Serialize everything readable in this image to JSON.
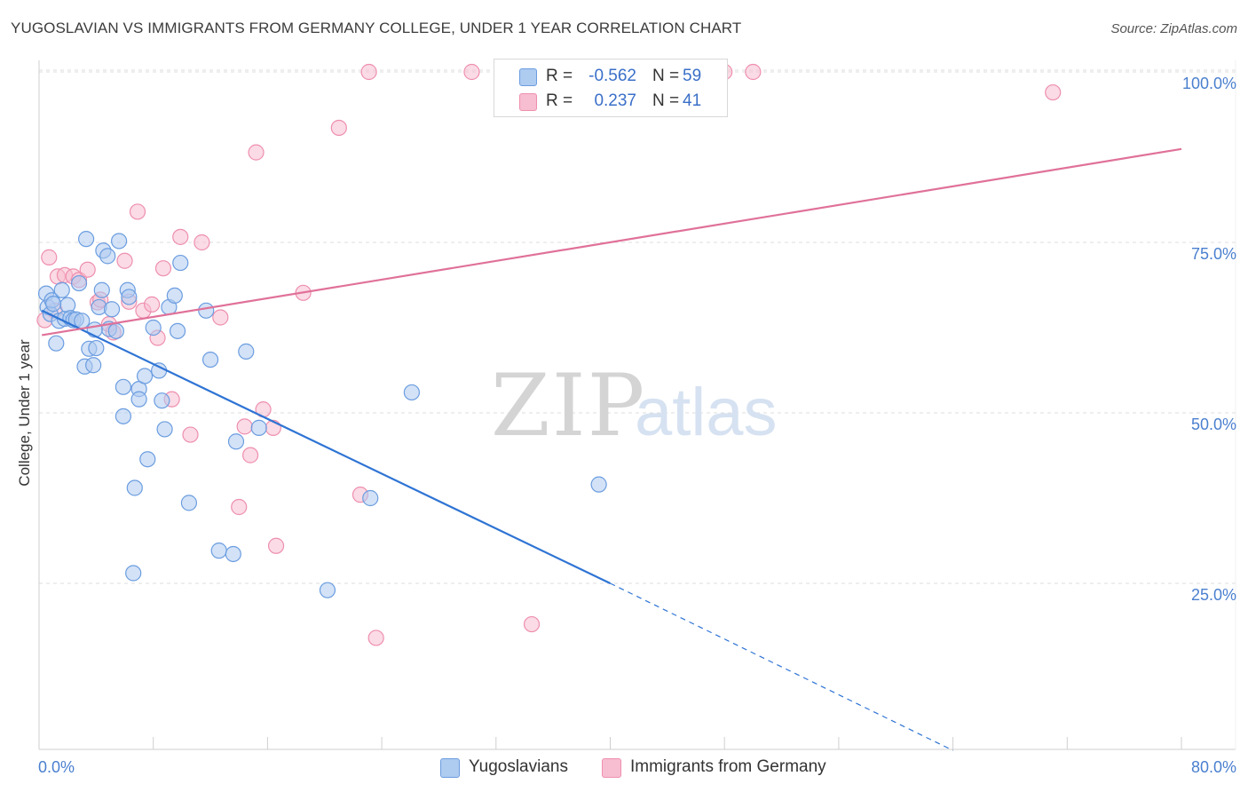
{
  "title": "YUGOSLAVIAN VS IMMIGRANTS FROM GERMANY COLLEGE, UNDER 1 YEAR CORRELATION CHART",
  "source": "Source: ZipAtlas.com",
  "watermark": {
    "zip": "ZIP",
    "atlas": "atlas"
  },
  "legend": {
    "rows": [
      {
        "r_label": "R =",
        "r_value": "-0.562",
        "n_label": "N =",
        "n_value": "59"
      },
      {
        "r_label": "R =",
        "r_value": "0.237",
        "n_label": "N =",
        "n_value": "41"
      }
    ]
  },
  "bottom_legend": [
    "Yugoslavians",
    "Immigrants from Germany"
  ],
  "colors": {
    "blue_fill": "#aecbf0",
    "blue_stroke": "#6b9de0",
    "blue_line": "#2f74d4",
    "pink_fill": "#f7bdd0",
    "pink_stroke": "#ee8fae",
    "pink_line": "#e07199",
    "grid": "#dcdcdc",
    "axis_text": "#4a7fcf"
  },
  "chart_data": {
    "type": "scatter",
    "title": "YUGOSLAVIAN VS IMMIGRANTS FROM GERMANY COLLEGE, UNDER 1 YEAR CORRELATION CHART",
    "xlabel": "",
    "ylabel": "College, Under 1 year",
    "xlim": [
      0,
      80
    ],
    "ylim": [
      0,
      105
    ],
    "x_tick_labels": [
      "0.0%",
      "80.0%"
    ],
    "y_ticks": [
      25,
      50,
      75,
      100
    ],
    "y_tick_labels": [
      "25.0%",
      "50.0%",
      "75.0%",
      "100.0%"
    ],
    "legend_position": "top-center",
    "series": [
      {
        "name": "Yugoslavians",
        "r": -0.562,
        "n": 59,
        "trend": {
          "x0": 0.2,
          "y0": 65.0,
          "x1": 40.0,
          "y1": 25.0,
          "dash_x1": 64.0,
          "dash_y1": 0.5
        },
        "points": [
          [
            0.5,
            67.5
          ],
          [
            0.6,
            65.5
          ],
          [
            0.8,
            64.5
          ],
          [
            0.9,
            66.5
          ],
          [
            1.2,
            60.2
          ],
          [
            1.4,
            63.5
          ],
          [
            1.6,
            68.0
          ],
          [
            1.8,
            63.8
          ],
          [
            2.0,
            65.8
          ],
          [
            2.2,
            63.9
          ],
          [
            2.4,
            63.6
          ],
          [
            2.6,
            63.7
          ],
          [
            2.8,
            69.0
          ],
          [
            3.0,
            63.5
          ],
          [
            3.2,
            56.8
          ],
          [
            3.3,
            75.5
          ],
          [
            3.5,
            59.4
          ],
          [
            3.8,
            57.0
          ],
          [
            4.0,
            59.5
          ],
          [
            4.2,
            65.5
          ],
          [
            4.4,
            68.0
          ],
          [
            4.5,
            73.8
          ],
          [
            4.8,
            73.0
          ],
          [
            4.9,
            62.3
          ],
          [
            5.1,
            65.2
          ],
          [
            5.4,
            62.0
          ],
          [
            5.6,
            75.2
          ],
          [
            5.9,
            49.5
          ],
          [
            5.9,
            53.8
          ],
          [
            6.2,
            68.0
          ],
          [
            6.3,
            67.0
          ],
          [
            6.6,
            26.5
          ],
          [
            6.7,
            39.0
          ],
          [
            7.0,
            53.5
          ],
          [
            7.0,
            52.0
          ],
          [
            7.4,
            55.4
          ],
          [
            7.6,
            43.2
          ],
          [
            8.0,
            62.5
          ],
          [
            8.4,
            56.2
          ],
          [
            8.6,
            51.8
          ],
          [
            8.8,
            47.6
          ],
          [
            9.1,
            65.5
          ],
          [
            9.5,
            67.2
          ],
          [
            9.7,
            62.0
          ],
          [
            9.9,
            72.0
          ],
          [
            10.5,
            36.8
          ],
          [
            11.7,
            65.0
          ],
          [
            12.0,
            57.8
          ],
          [
            12.6,
            29.8
          ],
          [
            13.6,
            29.3
          ],
          [
            13.8,
            45.8
          ],
          [
            14.5,
            59.0
          ],
          [
            15.4,
            47.8
          ],
          [
            20.2,
            24.0
          ],
          [
            23.2,
            37.5
          ],
          [
            26.1,
            53.0
          ],
          [
            39.2,
            39.5
          ],
          [
            3.9,
            62.2
          ],
          [
            1.0,
            66.0
          ]
        ]
      },
      {
        "name": "Immigrants from Germany",
        "r": 0.237,
        "n": 41,
        "trend": {
          "x0": 0.2,
          "y0": 61.4,
          "x1": 80.0,
          "y1": 88.7
        },
        "points": [
          [
            0.4,
            63.6
          ],
          [
            0.7,
            72.8
          ],
          [
            1.1,
            65.0
          ],
          [
            1.3,
            70.0
          ],
          [
            1.8,
            70.2
          ],
          [
            2.4,
            70.0
          ],
          [
            2.8,
            69.5
          ],
          [
            3.4,
            71.0
          ],
          [
            4.1,
            66.2
          ],
          [
            4.3,
            66.6
          ],
          [
            4.9,
            63.0
          ],
          [
            5.2,
            61.8
          ],
          [
            6.0,
            72.3
          ],
          [
            6.3,
            66.3
          ],
          [
            6.9,
            79.5
          ],
          [
            7.3,
            65.0
          ],
          [
            7.9,
            65.9
          ],
          [
            8.3,
            61.0
          ],
          [
            8.7,
            71.2
          ],
          [
            9.3,
            52.0
          ],
          [
            9.9,
            75.8
          ],
          [
            10.6,
            46.8
          ],
          [
            11.4,
            75.0
          ],
          [
            12.7,
            64.0
          ],
          [
            14.0,
            36.2
          ],
          [
            14.4,
            48.0
          ],
          [
            14.8,
            43.8
          ],
          [
            15.2,
            88.2
          ],
          [
            15.7,
            50.5
          ],
          [
            16.4,
            47.8
          ],
          [
            16.6,
            30.5
          ],
          [
            18.5,
            67.6
          ],
          [
            21.0,
            91.8
          ],
          [
            22.5,
            38.0
          ],
          [
            23.1,
            100.0
          ],
          [
            23.6,
            17.0
          ],
          [
            30.3,
            100.0
          ],
          [
            34.5,
            19.0
          ],
          [
            48.0,
            100.0
          ],
          [
            50.0,
            100.0
          ],
          [
            71.0,
            97.0
          ]
        ]
      }
    ]
  }
}
